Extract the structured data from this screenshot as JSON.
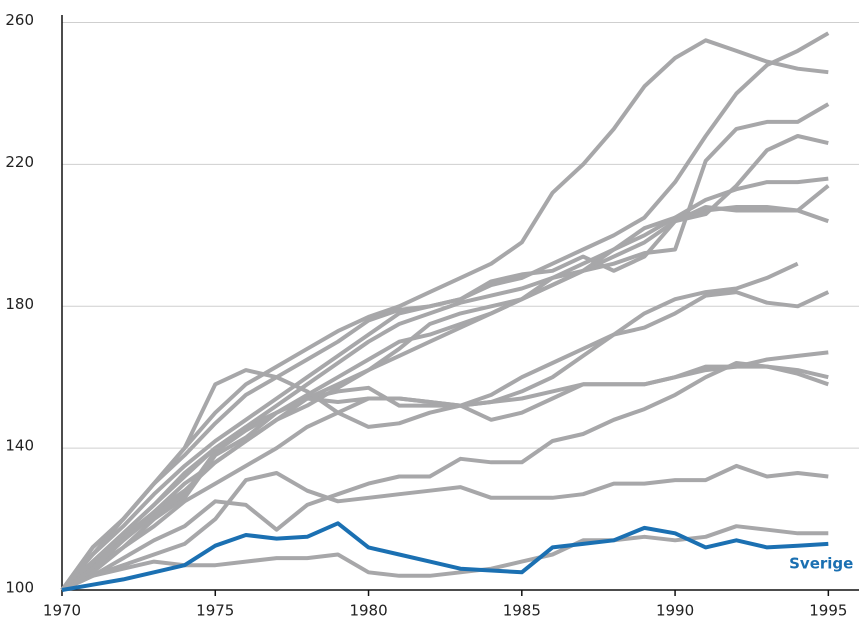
{
  "chart_data": {
    "type": "line",
    "x": [
      1970,
      1971,
      1972,
      1973,
      1974,
      1975,
      1976,
      1977,
      1978,
      1979,
      1980,
      1981,
      1982,
      1983,
      1984,
      1985,
      1986,
      1987,
      1988,
      1989,
      1990,
      1991,
      1992,
      1993,
      1994,
      1995
    ],
    "xlim": [
      1970,
      1996
    ],
    "xticks": [
      1970,
      1975,
      1980,
      1985,
      1990,
      1995
    ],
    "ylim": [
      100,
      261
    ],
    "yticks": [
      100,
      140,
      180,
      220,
      260
    ],
    "grid": true,
    "series": [
      {
        "color": "#a7a7a9",
        "values": [
          100,
          112,
          120,
          130,
          140,
          150,
          158,
          163,
          168,
          173,
          177,
          180,
          184,
          188,
          192,
          198,
          212,
          220,
          230,
          242,
          250,
          255,
          252,
          249,
          247,
          246
        ]
      },
      {
        "color": "#a7a7a9",
        "values": [
          100,
          110,
          118,
          127,
          135,
          142,
          148,
          154,
          160,
          166,
          172,
          178,
          180,
          182,
          186,
          188,
          192,
          196,
          200,
          205,
          215,
          228,
          240,
          248,
          252,
          257
        ]
      },
      {
        "color": "#a7a7a9",
        "values": [
          100,
          108,
          116,
          124,
          132,
          140,
          146,
          152,
          158,
          164,
          170,
          175,
          178,
          181,
          183,
          185,
          188,
          190,
          192,
          195,
          196,
          221,
          230,
          232,
          232,
          237
        ]
      },
      {
        "color": "#a7a7a9",
        "values": [
          100,
          107,
          115,
          122,
          130,
          136,
          142,
          148,
          154,
          158,
          162,
          166,
          170,
          174,
          178,
          182,
          186,
          190,
          194,
          198,
          204,
          206,
          214,
          224,
          228,
          226
        ]
      },
      {
        "color": "#a7a7a9",
        "values": [
          100,
          108,
          116,
          124,
          133,
          140,
          146,
          150,
          155,
          160,
          165,
          170,
          172,
          175,
          178,
          182,
          188,
          192,
          196,
          200,
          205,
          210,
          213,
          215,
          215,
          216
        ]
      },
      {
        "color": "#a7a7a9",
        "values": [
          100,
          106,
          114,
          122,
          128,
          136,
          142,
          148,
          152,
          157,
          162,
          168,
          175,
          178,
          180,
          182,
          186,
          190,
          196,
          202,
          205,
          207,
          208,
          208,
          207,
          214
        ]
      },
      {
        "color": "#a7a7a9",
        "values": [
          100,
          112,
          120,
          130,
          138,
          147,
          155,
          160,
          165,
          170,
          176,
          179,
          180,
          182,
          187,
          189,
          190,
          194,
          190,
          194,
          204,
          208,
          207,
          207,
          207,
          204
        ]
      },
      {
        "color": "#a7a7a9",
        "values": [
          100,
          106,
          112,
          120,
          126,
          138,
          143,
          150,
          154,
          156,
          157,
          152,
          152,
          152,
          153,
          156,
          160,
          166,
          172,
          178,
          182,
          184,
          185,
          188,
          192,
          null
        ]
      },
      {
        "color": "#a7a7a9",
        "values": [
          100,
          106,
          114,
          121,
          127,
          139,
          145,
          150,
          154,
          153,
          154,
          154,
          153,
          152,
          155,
          160,
          164,
          168,
          172,
          174,
          178,
          183,
          184,
          181,
          180,
          184
        ]
      },
      {
        "color": "#a7a7a9",
        "values": [
          100,
          105,
          112,
          118,
          125,
          130,
          135,
          140,
          146,
          150,
          154,
          154,
          153,
          152,
          153,
          154,
          156,
          158,
          158,
          158,
          160,
          162,
          163,
          165,
          166,
          167
        ]
      },
      {
        "color": "#a7a7a9",
        "values": [
          100,
          110,
          120,
          130,
          140,
          158,
          162,
          160,
          156,
          150,
          146,
          147,
          150,
          152,
          148,
          150,
          154,
          158,
          158,
          158,
          160,
          163,
          163,
          163,
          161,
          158
        ]
      },
      {
        "color": "#a7a7a9",
        "values": [
          100,
          104,
          109,
          114,
          118,
          125,
          124,
          117,
          124,
          127,
          130,
          132,
          132,
          137,
          136,
          136,
          142,
          144,
          148,
          151,
          155,
          160,
          164,
          163,
          162,
          160
        ]
      },
      {
        "color": "#a7a7a9",
        "values": [
          100,
          104,
          107,
          110,
          113,
          120,
          131,
          133,
          128,
          125,
          126,
          127,
          128,
          129,
          126,
          126,
          126,
          127,
          130,
          130,
          131,
          131,
          135,
          132,
          133,
          132
        ]
      },
      {
        "color": "#a7a7a9",
        "values": [
          100,
          104,
          106,
          108,
          107,
          107,
          108,
          109,
          109,
          110,
          105,
          104,
          104,
          105,
          106,
          108,
          110,
          114,
          114,
          115,
          114,
          115,
          118,
          117,
          116,
          116
        ]
      },
      {
        "name": "Sverige",
        "color": "#1b70b2",
        "values": [
          100,
          101.5,
          103,
          105,
          107,
          112.5,
          115.5,
          114.5,
          115,
          118.8,
          112,
          110,
          108,
          106,
          105.5,
          105,
          112,
          113,
          114,
          117.5,
          116,
          112,
          114,
          112,
          112.5,
          113
        ]
      }
    ]
  }
}
